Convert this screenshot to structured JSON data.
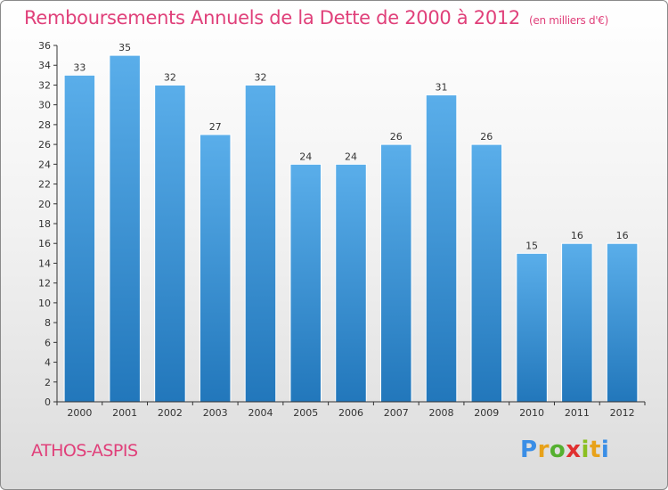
{
  "title": "Remboursements Annuels de la Dette de 2000 à 2012",
  "subtitle": "(en milliers d'€)",
  "commune": "ATHOS-ASPIS",
  "brand": {
    "letters": [
      "P",
      "r",
      "o",
      "x",
      "i",
      "t",
      "i"
    ],
    "colors": [
      "#3a8ee6",
      "#e8a21a",
      "#55b030",
      "#e03030",
      "#8bbf20",
      "#e8a21a",
      "#3a8ee6"
    ]
  },
  "colors": {
    "title": "#e0407a",
    "bar": "#4a9ee0",
    "bar_dark": "#1f74b8"
  },
  "chart_data": {
    "type": "bar",
    "categories": [
      "2000",
      "2001",
      "2002",
      "2003",
      "2004",
      "2005",
      "2006",
      "2007",
      "2008",
      "2009",
      "2010",
      "2011",
      "2012"
    ],
    "values": [
      33,
      35,
      32,
      27,
      32,
      24,
      24,
      26,
      31,
      26,
      15,
      16,
      16
    ],
    "ylim": [
      0,
      36
    ],
    "yticks": [
      0,
      2,
      4,
      6,
      8,
      10,
      12,
      14,
      16,
      18,
      20,
      22,
      24,
      26,
      28,
      30,
      32,
      34,
      36
    ],
    "grid": false,
    "data_labels": true
  }
}
